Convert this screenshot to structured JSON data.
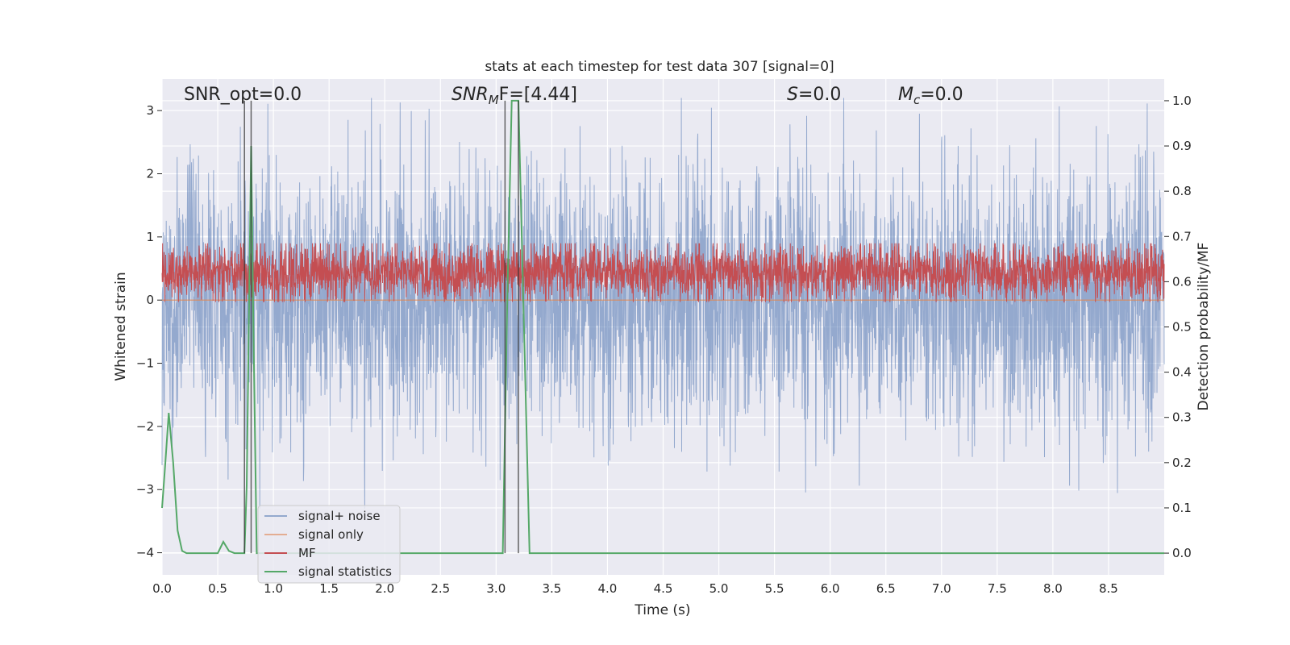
{
  "chart_data": {
    "type": "line",
    "title": "stats at each timestep for test data 307 [signal=0]",
    "xlabel": "Time (s)",
    "ylabel": "Whitened strain",
    "y2label": "Detection probability/MF",
    "xlim": [
      0.0,
      9.0
    ],
    "ylim": [
      -4.35,
      3.5
    ],
    "y2lim": [
      -0.048,
      1.048
    ],
    "xticks": [
      "0.0",
      "0.5",
      "1.0",
      "1.5",
      "2.0",
      "2.5",
      "3.0",
      "3.5",
      "4.0",
      "4.5",
      "5.0",
      "5.5",
      "6.0",
      "6.5",
      "7.0",
      "7.5",
      "8.0",
      "8.5"
    ],
    "yticks": [
      "−4",
      "−3",
      "−2",
      "−1",
      "0",
      "1",
      "2",
      "3"
    ],
    "y2ticks": [
      "0.0",
      "0.1",
      "0.2",
      "0.3",
      "0.4",
      "0.5",
      "0.6",
      "0.7",
      "0.8",
      "0.9",
      "1.0"
    ],
    "grid": true,
    "legend_position": "lower-left",
    "annotations": {
      "snr_opt": "SNR_opt=0.0",
      "snr_mf_base": "SNR",
      "snr_mf_sub": "M",
      "snr_mf_rest": "F=[4.44]",
      "s": "S",
      "s_rest": "=0.0",
      "mc": "M",
      "mc_sub": "c",
      "mc_rest": "=0.0"
    },
    "series": [
      {
        "name": "signal+ noise",
        "color": "#4c72b0",
        "kind": "noise",
        "amplitude_range": [
          -3.3,
          3.2
        ]
      },
      {
        "name": "signal only",
        "color": "#dd8452",
        "kind": "constant",
        "value": 0.0
      },
      {
        "name": "MF",
        "color": "#c44e52",
        "kind": "noise-band",
        "axis": "right",
        "range": [
          0.555,
          0.685
        ]
      },
      {
        "name": "signal statistics",
        "color": "#55a868",
        "axis": "right",
        "x": [
          0.0,
          0.03,
          0.06,
          0.1,
          0.14,
          0.18,
          0.22,
          0.26,
          0.3,
          0.35,
          0.4,
          0.45,
          0.5,
          0.55,
          0.6,
          0.65,
          0.7,
          0.74,
          0.76,
          0.8,
          0.82,
          0.85,
          0.9,
          1.0,
          1.5,
          2.0,
          2.5,
          3.0,
          3.06,
          3.1,
          3.14,
          3.2,
          3.3,
          3.35,
          4.0,
          5.0,
          6.0,
          7.0,
          8.0,
          9.0
        ],
        "values": [
          0.1,
          0.2,
          0.31,
          0.2,
          0.05,
          0.005,
          0.0,
          0.0,
          0.0,
          0.0,
          0.0,
          0.0,
          0.0,
          0.025,
          0.005,
          0.0,
          0.0,
          0.0,
          0.15,
          0.9,
          0.5,
          0.0,
          0.0,
          0.0,
          0.0,
          0.0,
          0.0,
          0.0,
          0.0,
          0.55,
          1.0,
          1.0,
          0.0,
          0.0,
          0.0,
          0.0,
          0.0,
          0.0,
          0.0,
          0.0
        ]
      }
    ],
    "vlines": [
      0.74,
      0.8,
      3.08,
      3.2
    ]
  },
  "legend": {
    "items": [
      {
        "label": "signal+ noise",
        "color": "#4c72b0"
      },
      {
        "label": "signal only",
        "color": "#dd8452"
      },
      {
        "label": "MF",
        "color": "#c44e52"
      },
      {
        "label": "signal statistics",
        "color": "#55a868"
      }
    ]
  }
}
